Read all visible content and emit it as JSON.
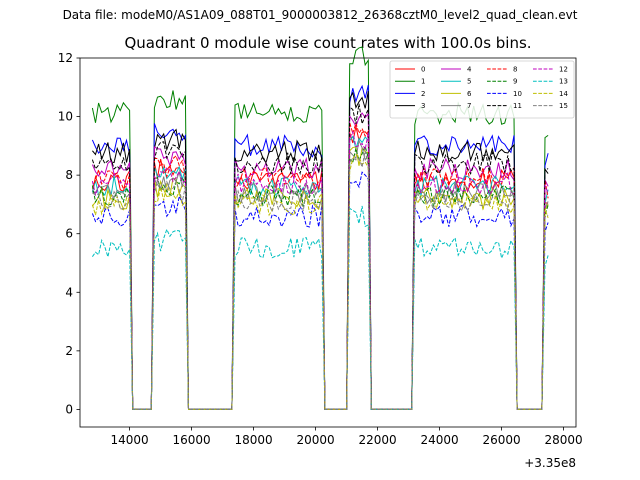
{
  "figure": {
    "suptitle": "Data file: modeM0/AS1A09_088T01_9000003812_26368cztM0_level2_quad_clean.evt"
  },
  "chart_data": {
    "type": "line",
    "title": "Quadrant 0 module wise count rates with 100.0s bins.",
    "xlabel": "",
    "ylabel": "",
    "x_offset_label": "+3.35e8",
    "xlim": [
      12400,
      28400
    ],
    "ylim": [
      -0.6,
      12
    ],
    "xticks": [
      14000,
      16000,
      18000,
      20000,
      22000,
      24000,
      26000,
      28000
    ],
    "xtick_labels": [
      "14000",
      "16000",
      "18000",
      "20000",
      "22000",
      "24000",
      "26000",
      "28000"
    ],
    "yticks": [
      0,
      2,
      4,
      6,
      8,
      10,
      12
    ],
    "ytick_labels": [
      "0",
      "2",
      "4",
      "6",
      "8",
      "10",
      "12"
    ],
    "grid": false,
    "legend_position": "top-right",
    "legend_columns": 4,
    "segments": [
      {
        "start": 12800,
        "end": 14000,
        "base_level": 1.0
      },
      {
        "start": 14800,
        "end": 15800,
        "base_level": 1.05
      },
      {
        "start": 17400,
        "end": 20200,
        "base_level": 1.0
      },
      {
        "start": 21100,
        "end": 21700,
        "base_level": 1.2
      },
      {
        "start": 23200,
        "end": 26400,
        "base_level": 1.0
      },
      {
        "start": 27400,
        "end": 27500,
        "base_level": 0.95
      }
    ],
    "gap_level": 0.0,
    "series": [
      {
        "name": "0",
        "color": "#ff0000",
        "dash": "solid",
        "level": 7.8
      },
      {
        "name": "1",
        "color": "#008000",
        "dash": "solid",
        "level": 10.1
      },
      {
        "name": "2",
        "color": "#0000ff",
        "dash": "solid",
        "level": 9.0
      },
      {
        "name": "3",
        "color": "#000000",
        "dash": "solid",
        "level": 8.8
      },
      {
        "name": "4",
        "color": "#bf00bf",
        "dash": "solid",
        "level": 8.2
      },
      {
        "name": "5",
        "color": "#00bfbf",
        "dash": "solid",
        "level": 7.6
      },
      {
        "name": "6",
        "color": "#bfbf00",
        "dash": "solid",
        "level": 7.2
      },
      {
        "name": "7",
        "color": "#808080",
        "dash": "solid",
        "level": 7.4
      },
      {
        "name": "8",
        "color": "#ff0000",
        "dash": "dashed",
        "level": 7.9
      },
      {
        "name": "9",
        "color": "#008000",
        "dash": "dashed",
        "level": 7.3
      },
      {
        "name": "10",
        "color": "#0000ff",
        "dash": "dashed",
        "level": 6.6
      },
      {
        "name": "11",
        "color": "#000000",
        "dash": "dashed",
        "level": 8.4
      },
      {
        "name": "12",
        "color": "#bf00bf",
        "dash": "dashed",
        "level": 7.7
      },
      {
        "name": "13",
        "color": "#00bfbf",
        "dash": "dashed",
        "level": 5.5
      },
      {
        "name": "14",
        "color": "#bfbf00",
        "dash": "dashed",
        "level": 7.0
      },
      {
        "name": "15",
        "color": "#808080",
        "dash": "dashed",
        "level": 7.1
      }
    ]
  }
}
